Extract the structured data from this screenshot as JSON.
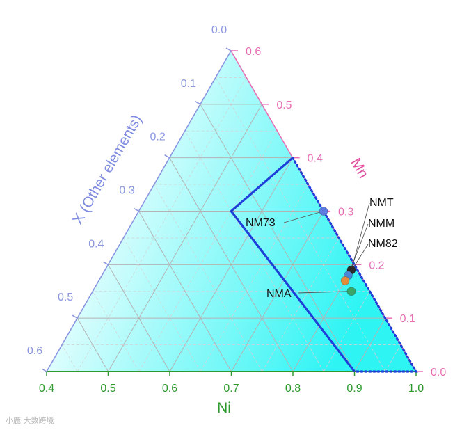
{
  "chart_data": {
    "type": "ternary",
    "axes": {
      "ni": {
        "title": "Ni",
        "range": [
          0.4,
          1.0
        ],
        "ticks": [
          "0.4",
          "0.5",
          "0.6",
          "0.7",
          "0.8",
          "0.9",
          "1.0"
        ],
        "color": "#2e9a2e"
      },
      "mn": {
        "title": "Mn",
        "range": [
          0.0,
          0.6
        ],
        "ticks": [
          "0.0",
          "0.1",
          "0.2",
          "0.3",
          "0.4",
          "0.5",
          "0.6"
        ],
        "color": "#e86fb5"
      },
      "x": {
        "title": "X (Other elements)",
        "range": [
          0.0,
          0.6
        ],
        "ticks": [
          "0.0",
          "0.1",
          "0.2",
          "0.3",
          "0.4",
          "0.5",
          "0.6"
        ],
        "color": "#8b95e0"
      }
    },
    "grid": true,
    "gradient": {
      "from": "#ffffff",
      "to": "#2ff4f4"
    },
    "boundary": {
      "color": "#1f3fd9",
      "solid": [
        {
          "ni": 0.6,
          "mn": 0.4,
          "x": 0.0
        },
        {
          "ni": 0.55,
          "mn": 0.3,
          "x": 0.15
        },
        {
          "ni": 0.9,
          "mn": 0.0,
          "x": 0.1
        }
      ],
      "dotted": [
        {
          "ni": 0.6,
          "mn": 0.4,
          "x": 0.0
        },
        {
          "ni": 1.0,
          "mn": 0.0,
          "x": 0.0
        },
        {
          "ni": 0.9,
          "mn": 0.0,
          "x": 0.1
        }
      ]
    },
    "points": [
      {
        "label": "NM73",
        "ni": 0.7,
        "mn": 0.3,
        "x": 0.0,
        "color": "#5b7be0"
      },
      {
        "label": "NMT",
        "ni": 0.8,
        "mn": 0.19,
        "x": 0.01,
        "color": "#2a2a2a"
      },
      {
        "label": "NMM",
        "ni": 0.8,
        "mn": 0.18,
        "x": 0.02,
        "color": "#4a87d6"
      },
      {
        "label": "NM82",
        "ni": 0.8,
        "mn": 0.17,
        "x": 0.03,
        "color": "#e58b3c"
      },
      {
        "label": "NMA",
        "ni": 0.82,
        "mn": 0.15,
        "x": 0.03,
        "color": "#3aa56b"
      }
    ]
  },
  "watermark": "小鹿 大数跨境"
}
